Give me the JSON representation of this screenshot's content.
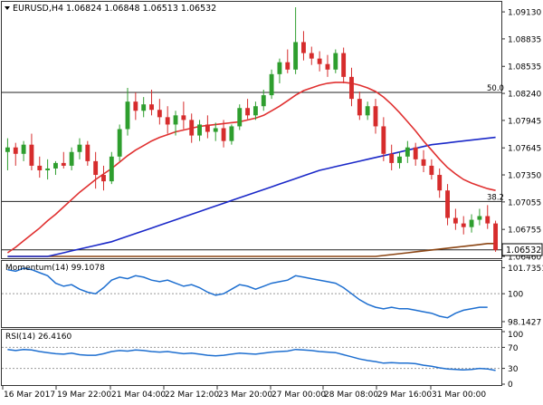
{
  "header": {
    "symbol_label": "EURUSD,H4",
    "ohlc_text": "1.06824 1.06848 1.06513 1.06532"
  },
  "price_axis": {
    "ticks": [
      "1.09130",
      "1.08835",
      "1.08535",
      "1.08240",
      "1.07945",
      "1.07645",
      "1.07350",
      "1.07055",
      "1.06755",
      "1.06460"
    ],
    "current_price_label": "1.06532"
  },
  "fib_levels": [
    {
      "label": "50.0",
      "value": 1.0825
    },
    {
      "label": "38.2",
      "value": 1.0706
    }
  ],
  "momentum": {
    "title": "Momentum(14) 99.1078",
    "ticks": [
      "101.7351",
      "100",
      "98.1427"
    ]
  },
  "rsi": {
    "title": "RSI(14) 26.4160",
    "ticks": [
      "100",
      "70",
      "30",
      "0"
    ]
  },
  "time_axis": {
    "labels": [
      "16 Mar 2017",
      "19 Mar 22:00",
      "21 Mar 04:00",
      "22 Mar 12:00",
      "23 Mar 20:00",
      "27 Mar 00:00",
      "28 Mar 08:00",
      "29 Mar 16:00",
      "31 Mar 00:00"
    ]
  },
  "colors": {
    "bull": "#2e9e2e",
    "bear": "#d62c2c",
    "sma_fast": "#e03030",
    "sma_mid": "#1a28c8",
    "sma_slow": "#8b4513",
    "indicator": "#1e6fd0"
  },
  "chart_data": {
    "type": "candlestick",
    "price_range": [
      1.0646,
      1.0922
    ],
    "candles": [
      {
        "o": 1.076,
        "h": 1.0775,
        "l": 1.074,
        "c": 1.0765
      },
      {
        "o": 1.0765,
        "h": 1.077,
        "l": 1.0745,
        "c": 1.0758
      },
      {
        "o": 1.0758,
        "h": 1.0772,
        "l": 1.075,
        "c": 1.0768
      },
      {
        "o": 1.0768,
        "h": 1.078,
        "l": 1.074,
        "c": 1.0745
      },
      {
        "o": 1.0745,
        "h": 1.0755,
        "l": 1.0732,
        "c": 1.074
      },
      {
        "o": 1.074,
        "h": 1.0752,
        "l": 1.073,
        "c": 1.0742
      },
      {
        "o": 1.0742,
        "h": 1.075,
        "l": 1.0735,
        "c": 1.0748
      },
      {
        "o": 1.0748,
        "h": 1.076,
        "l": 1.0742,
        "c": 1.0745
      },
      {
        "o": 1.0745,
        "h": 1.0765,
        "l": 1.074,
        "c": 1.076
      },
      {
        "o": 1.076,
        "h": 1.0775,
        "l": 1.0752,
        "c": 1.0768
      },
      {
        "o": 1.0768,
        "h": 1.0772,
        "l": 1.0745,
        "c": 1.075
      },
      {
        "o": 1.075,
        "h": 1.076,
        "l": 1.072,
        "c": 1.0735
      },
      {
        "o": 1.0735,
        "h": 1.0745,
        "l": 1.0718,
        "c": 1.0728
      },
      {
        "o": 1.0728,
        "h": 1.076,
        "l": 1.0725,
        "c": 1.0755
      },
      {
        "o": 1.0755,
        "h": 1.079,
        "l": 1.075,
        "c": 1.0785
      },
      {
        "o": 1.0785,
        "h": 1.083,
        "l": 1.0778,
        "c": 1.0815
      },
      {
        "o": 1.0815,
        "h": 1.0825,
        "l": 1.0795,
        "c": 1.0805
      },
      {
        "o": 1.0805,
        "h": 1.082,
        "l": 1.0798,
        "c": 1.0812
      },
      {
        "o": 1.0812,
        "h": 1.0828,
        "l": 1.08,
        "c": 1.0806
      },
      {
        "o": 1.0806,
        "h": 1.0818,
        "l": 1.079,
        "c": 1.0798
      },
      {
        "o": 1.0798,
        "h": 1.081,
        "l": 1.078,
        "c": 1.079
      },
      {
        "o": 1.079,
        "h": 1.0805,
        "l": 1.0778,
        "c": 1.08
      },
      {
        "o": 1.08,
        "h": 1.0815,
        "l": 1.0785,
        "c": 1.0795
      },
      {
        "o": 1.0795,
        "h": 1.0802,
        "l": 1.077,
        "c": 1.0778
      },
      {
        "o": 1.0778,
        "h": 1.0795,
        "l": 1.0772,
        "c": 1.079
      },
      {
        "o": 1.079,
        "h": 1.08,
        "l": 1.0775,
        "c": 1.0782
      },
      {
        "o": 1.0782,
        "h": 1.0792,
        "l": 1.0772,
        "c": 1.0786
      },
      {
        "o": 1.0786,
        "h": 1.0795,
        "l": 1.0765,
        "c": 1.0772
      },
      {
        "o": 1.0772,
        "h": 1.079,
        "l": 1.0768,
        "c": 1.0788
      },
      {
        "o": 1.0788,
        "h": 1.0812,
        "l": 1.0784,
        "c": 1.0808
      },
      {
        "o": 1.0808,
        "h": 1.0818,
        "l": 1.0796,
        "c": 1.08
      },
      {
        "o": 1.08,
        "h": 1.0815,
        "l": 1.0795,
        "c": 1.081
      },
      {
        "o": 1.081,
        "h": 1.0828,
        "l": 1.0805,
        "c": 1.0822
      },
      {
        "o": 1.0822,
        "h": 1.085,
        "l": 1.0818,
        "c": 1.0845
      },
      {
        "o": 1.0845,
        "h": 1.0862,
        "l": 1.0835,
        "c": 1.0858
      },
      {
        "o": 1.0858,
        "h": 1.0872,
        "l": 1.0846,
        "c": 1.085
      },
      {
        "o": 1.085,
        "h": 1.0918,
        "l": 1.0845,
        "c": 1.088
      },
      {
        "o": 1.088,
        "h": 1.0892,
        "l": 1.086,
        "c": 1.0868
      },
      {
        "o": 1.0868,
        "h": 1.0875,
        "l": 1.0855,
        "c": 1.0862
      },
      {
        "o": 1.0862,
        "h": 1.087,
        "l": 1.0848,
        "c": 1.0856
      },
      {
        "o": 1.0856,
        "h": 1.0866,
        "l": 1.0842,
        "c": 1.085
      },
      {
        "o": 1.085,
        "h": 1.0872,
        "l": 1.0846,
        "c": 1.0868
      },
      {
        "o": 1.0868,
        "h": 1.0874,
        "l": 1.0835,
        "c": 1.0842
      },
      {
        "o": 1.0842,
        "h": 1.0852,
        "l": 1.081,
        "c": 1.0818
      },
      {
        "o": 1.0818,
        "h": 1.0826,
        "l": 1.0795,
        "c": 1.08
      },
      {
        "o": 1.08,
        "h": 1.0815,
        "l": 1.0795,
        "c": 1.081
      },
      {
        "o": 1.081,
        "h": 1.0818,
        "l": 1.078,
        "c": 1.0788
      },
      {
        "o": 1.0788,
        "h": 1.0798,
        "l": 1.075,
        "c": 1.0758
      },
      {
        "o": 1.0758,
        "h": 1.0768,
        "l": 1.074,
        "c": 1.0748
      },
      {
        "o": 1.0748,
        "h": 1.076,
        "l": 1.0742,
        "c": 1.0755
      },
      {
        "o": 1.0755,
        "h": 1.0772,
        "l": 1.0748,
        "c": 1.0765
      },
      {
        "o": 1.0765,
        "h": 1.077,
        "l": 1.0745,
        "c": 1.0752
      },
      {
        "o": 1.0752,
        "h": 1.0762,
        "l": 1.0738,
        "c": 1.0745
      },
      {
        "o": 1.0745,
        "h": 1.0752,
        "l": 1.073,
        "c": 1.0735
      },
      {
        "o": 1.0735,
        "h": 1.0742,
        "l": 1.071,
        "c": 1.0718
      },
      {
        "o": 1.0718,
        "h": 1.0725,
        "l": 1.068,
        "c": 1.0688
      },
      {
        "o": 1.0688,
        "h": 1.0698,
        "l": 1.0675,
        "c": 1.0682
      },
      {
        "o": 1.0682,
        "h": 1.069,
        "l": 1.067,
        "c": 1.0678
      },
      {
        "o": 1.0678,
        "h": 1.0692,
        "l": 1.0672,
        "c": 1.0686
      },
      {
        "o": 1.0686,
        "h": 1.0698,
        "l": 1.068,
        "c": 1.069
      },
      {
        "o": 1.069,
        "h": 1.0702,
        "l": 1.0676,
        "c": 1.0682
      },
      {
        "o": 1.0682,
        "h": 1.0685,
        "l": 1.0651,
        "c": 1.0653
      }
    ],
    "sma_fast": [
      1.065,
      1.0656,
      1.0663,
      1.067,
      1.0677,
      1.0685,
      1.0692,
      1.07,
      1.0708,
      1.0716,
      1.0723,
      1.073,
      1.0736,
      1.0742,
      1.0749,
      1.0756,
      1.0762,
      1.0767,
      1.0772,
      1.0776,
      1.0779,
      1.0782,
      1.0784,
      1.0786,
      1.0788,
      1.0789,
      1.079,
      1.0791,
      1.0792,
      1.0793,
      1.0795,
      1.0797,
      1.08,
      1.0805,
      1.081,
      1.0816,
      1.0822,
      1.0827,
      1.083,
      1.0833,
      1.0835,
      1.0836,
      1.0836,
      1.0835,
      1.0833,
      1.083,
      1.0826,
      1.082,
      1.0812,
      1.0803,
      1.0793,
      1.0783,
      1.0772,
      1.0762,
      1.0752,
      1.0743,
      1.0736,
      1.073,
      1.0726,
      1.0723,
      1.072,
      1.0718
    ],
    "sma_mid": [
      1.064,
      1.0641,
      1.0642,
      1.0643,
      1.0645,
      1.0646,
      1.0648,
      1.065,
      1.0652,
      1.0654,
      1.0656,
      1.0658,
      1.066,
      1.0662,
      1.0665,
      1.0668,
      1.0671,
      1.0674,
      1.0677,
      1.068,
      1.0683,
      1.0686,
      1.0689,
      1.0692,
      1.0695,
      1.0698,
      1.0701,
      1.0704,
      1.0707,
      1.071,
      1.0713,
      1.0716,
      1.0719,
      1.0722,
      1.0725,
      1.0728,
      1.0731,
      1.0734,
      1.0737,
      1.074,
      1.0742,
      1.0744,
      1.0746,
      1.0748,
      1.075,
      1.0752,
      1.0754,
      1.0756,
      1.0758,
      1.076,
      1.0762,
      1.0764,
      1.0766,
      1.0768,
      1.0769,
      1.077,
      1.0771,
      1.0772,
      1.0773,
      1.0774,
      1.0775,
      1.0776
    ],
    "sma_slow": [
      1.06,
      1.0601,
      1.0602,
      1.0603,
      1.0604,
      1.0605,
      1.0606,
      1.0607,
      1.0608,
      1.0609,
      1.061,
      1.0611,
      1.0612,
      1.0613,
      1.0614,
      1.0615,
      1.0616,
      1.0617,
      1.0618,
      1.0619,
      1.062,
      1.0621,
      1.0622,
      1.0623,
      1.0624,
      1.0625,
      1.0626,
      1.0627,
      1.0628,
      1.0629,
      1.063,
      1.0631,
      1.0632,
      1.0633,
      1.0634,
      1.0635,
      1.0636,
      1.0637,
      1.0638,
      1.0639,
      1.064,
      1.0641,
      1.0642,
      1.0643,
      1.0644,
      1.0645,
      1.0646,
      1.0647,
      1.0648,
      1.0649,
      1.065,
      1.0651,
      1.0652,
      1.0653,
      1.0654,
      1.0655,
      1.0656,
      1.0657,
      1.0658,
      1.0659,
      1.066,
      1.066
    ],
    "momentum_range": [
      97.9,
      102.0
    ],
    "momentum": [
      101.6,
      101.5,
      101.7,
      101.6,
      101.4,
      101.2,
      100.7,
      100.5,
      100.6,
      100.3,
      100.1,
      100.0,
      100.4,
      100.9,
      101.1,
      101.0,
      101.2,
      101.1,
      100.9,
      100.8,
      100.9,
      100.7,
      100.5,
      100.6,
      100.4,
      100.1,
      99.9,
      100.0,
      100.3,
      100.6,
      100.5,
      100.3,
      100.5,
      100.7,
      100.8,
      100.9,
      101.2,
      101.1,
      101.0,
      100.9,
      100.8,
      100.7,
      100.4,
      100.0,
      99.6,
      99.3,
      99.1,
      99.0,
      99.1,
      99.0,
      99.0,
      98.9,
      98.8,
      98.7,
      98.5,
      98.4,
      98.7,
      98.9,
      99.0,
      99.1,
      99.1
    ],
    "rsi_range": [
      0,
      100
    ],
    "rsi": [
      66,
      64,
      66,
      65,
      62,
      60,
      58,
      57,
      59,
      56,
      55,
      55,
      58,
      62,
      64,
      63,
      65,
      64,
      62,
      61,
      62,
      60,
      58,
      59,
      57,
      55,
      54,
      55,
      57,
      59,
      58,
      57,
      59,
      61,
      62,
      63,
      66,
      65,
      64,
      62,
      61,
      60,
      56,
      52,
      48,
      45,
      43,
      40,
      41,
      40,
      40,
      39,
      36,
      34,
      31,
      29,
      28,
      27,
      28,
      30,
      29,
      26
    ]
  }
}
